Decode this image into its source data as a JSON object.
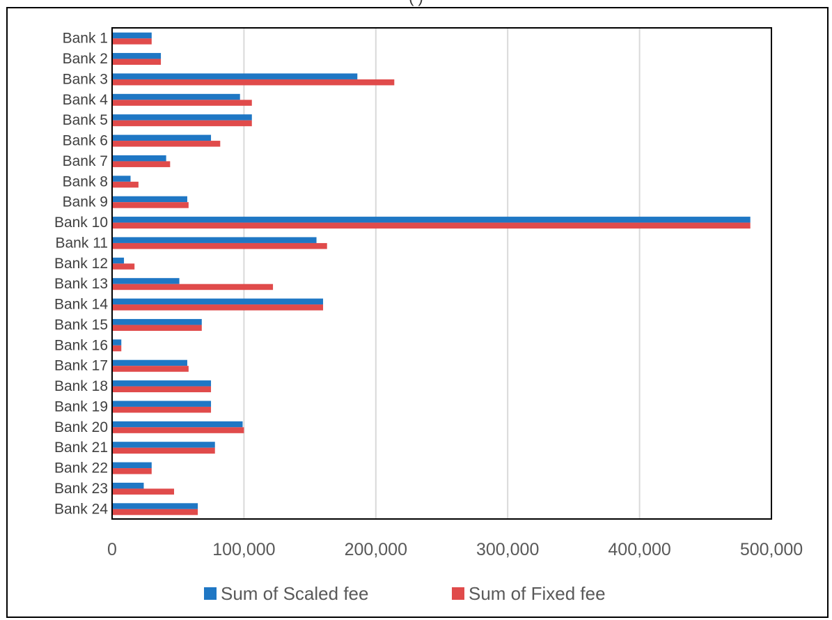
{
  "header": {
    "partial_title": "(                                            )"
  },
  "chart_data": {
    "type": "bar",
    "orientation": "horizontal",
    "categories": [
      "Bank 1",
      "Bank 2",
      "Bank 3",
      "Bank 4",
      "Bank 5",
      "Bank 6",
      "Bank 7",
      "Bank 8",
      "Bank 9",
      "Bank 10",
      "Bank 11",
      "Bank 12",
      "Bank 13",
      "Bank 14",
      "Bank 15",
      "Bank 16",
      "Bank 17",
      "Bank 18",
      "Bank 19",
      "Bank 20",
      "Bank 21",
      "Bank 22",
      "Bank 23",
      "Bank 24"
    ],
    "series": [
      {
        "name": "Sum of Scaled fee",
        "color": "#1f77c4",
        "values": [
          30000,
          37000,
          186000,
          97000,
          106000,
          75000,
          41000,
          14000,
          57000,
          484000,
          155000,
          9000,
          51000,
          160000,
          68000,
          7000,
          57000,
          75000,
          75000,
          99000,
          78000,
          30000,
          24000,
          65000
        ]
      },
      {
        "name": "Sum of Fixed fee",
        "color": "#e04b4b",
        "values": [
          30000,
          37000,
          214000,
          106000,
          106000,
          82000,
          44000,
          20000,
          58000,
          484000,
          163000,
          17000,
          122000,
          160000,
          68000,
          7000,
          58000,
          75000,
          75000,
          100000,
          78000,
          30000,
          47000,
          65000
        ]
      }
    ],
    "xlim": [
      0,
      500000
    ],
    "xticks": [
      0,
      100000,
      200000,
      300000,
      400000,
      500000
    ],
    "xtick_labels": [
      "0",
      "100,000",
      "200,000",
      "300,000",
      "400,000",
      "500,000"
    ],
    "grid": "vertical",
    "legend": "bottom"
  }
}
